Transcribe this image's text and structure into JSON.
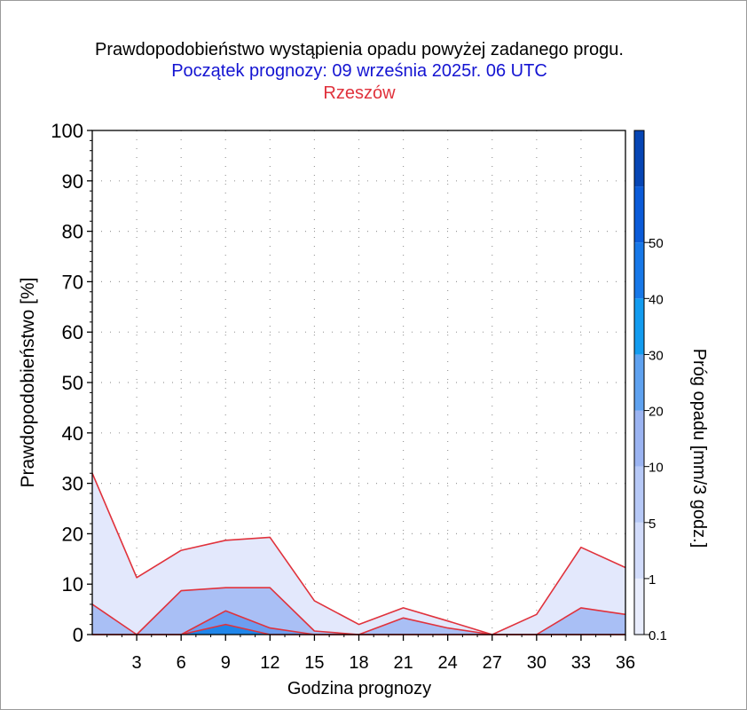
{
  "chart_data": {
    "type": "area",
    "title": "Prawdopodobieństwo wystąpienia opadu powyżej zadanego progu.",
    "subtitle": "Początek prognozy: 09 września 2025r. 06 UTC",
    "location": "Rzeszów",
    "xlabel": "Godzina prognozy",
    "ylabel": "Prawdopodobieństwo [%]",
    "colorbar_label": "Próg opadu [mm/3 godz.]",
    "x": [
      0,
      3,
      6,
      9,
      12,
      15,
      18,
      21,
      24,
      27,
      30,
      33,
      36
    ],
    "x_tick_labels": [
      "3",
      "6",
      "9",
      "12",
      "15",
      "18",
      "21",
      "24",
      "27",
      "30",
      "33",
      "36"
    ],
    "y_ticks": [
      "0",
      "10",
      "20",
      "30",
      "40",
      "50",
      "60",
      "70",
      "80",
      "90",
      "100"
    ],
    "xlim": [
      0,
      36
    ],
    "ylim": [
      0,
      100
    ],
    "series": [
      {
        "name": "0.1",
        "color": "#e3e8fc",
        "values": [
          32,
          11.3,
          16.7,
          18.7,
          19.3,
          6.7,
          2,
          5.3,
          2.7,
          0,
          4,
          17.3,
          13.3
        ]
      },
      {
        "name": "1",
        "color": "#a9bff5",
        "values": [
          6,
          0,
          8.7,
          9.3,
          9.3,
          0.7,
          0,
          3.3,
          1.3,
          0,
          0,
          5.3,
          4
        ]
      },
      {
        "name": "5",
        "color": "#6d9ef0",
        "values": [
          0,
          0,
          0,
          4.7,
          1.3,
          0,
          0,
          0,
          0,
          0,
          0,
          0,
          0
        ]
      },
      {
        "name": "10",
        "color": "#1f86ea",
        "values": [
          0,
          0,
          0,
          2,
          0,
          0,
          0,
          0,
          0,
          0,
          0,
          0,
          0
        ]
      }
    ],
    "colorbar": {
      "labels": [
        "0.1",
        "1",
        "5",
        "10",
        "20",
        "30",
        "40",
        "50"
      ],
      "colors": [
        "#e9edfd",
        "#d2dcfb",
        "#b7c9f7",
        "#9bb4f2",
        "#5fa2f0",
        "#139cf0",
        "#1778e8",
        "#0b5bd8",
        "#0645b4"
      ]
    },
    "line_color": "#e0323c",
    "grid": true
  }
}
